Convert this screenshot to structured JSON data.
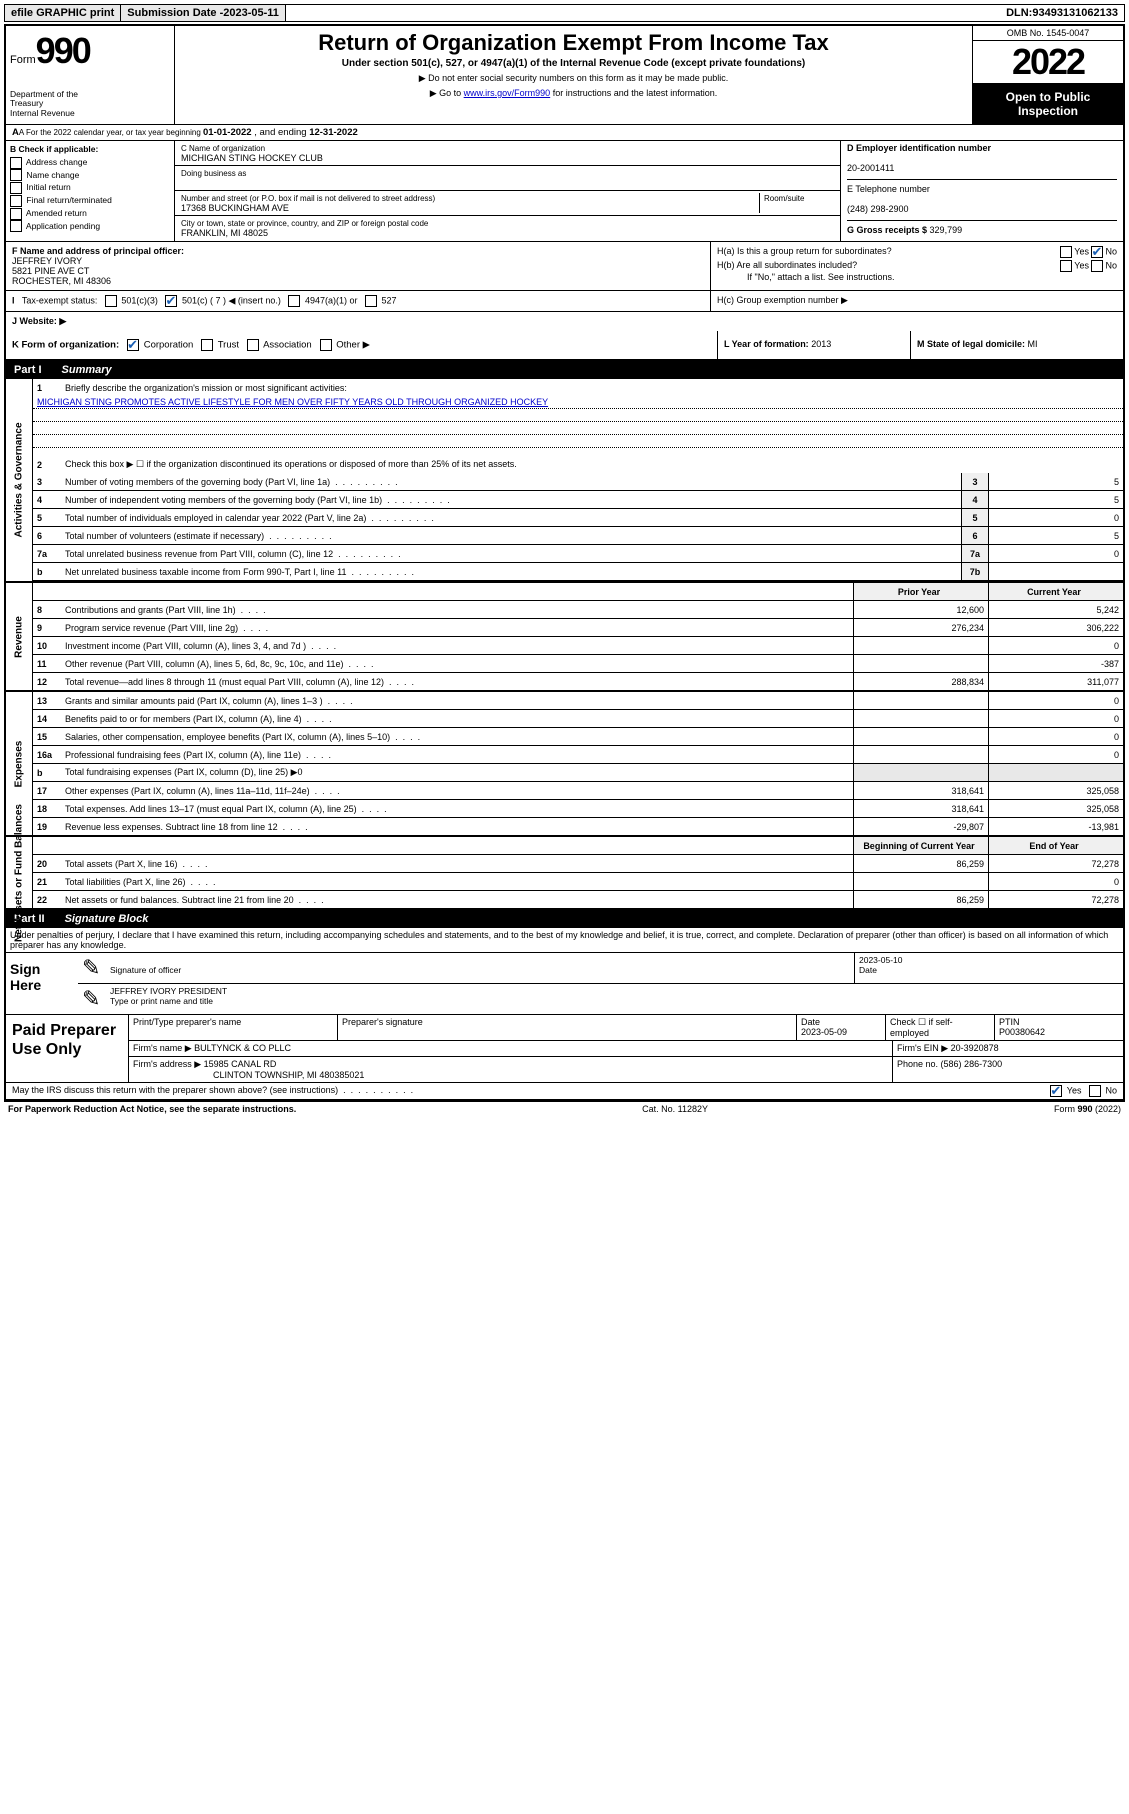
{
  "topbar": {
    "efile": "efile GRAPHIC print",
    "submission_label": "Submission Date - ",
    "submission_date": "2023-05-11",
    "dln_label": "DLN: ",
    "dln": "93493131062133"
  },
  "header": {
    "form_prefix": "Form",
    "form_number": "990",
    "dept": "Department of the Treasury\nInternal Revenue Service",
    "title": "Return of Organization Exempt From Income Tax",
    "subtitle": "Under section 501(c), 527, or 4947(a)(1) of the Internal Revenue Code (except private foundations)",
    "note1": "▶ Do not enter social security numbers on this form as it may be made public.",
    "note2_pre": "▶ Go to ",
    "note2_link": "www.irs.gov/Form990",
    "note2_post": " for instructions and the latest information.",
    "omb": "OMB No. 1545-0047",
    "year": "2022",
    "open": "Open to Public Inspection"
  },
  "rowA": {
    "text_pre": "A For the 2022 calendar year, or tax year beginning ",
    "begin": "01-01-2022",
    "mid": "   , and ending ",
    "end": "12-31-2022"
  },
  "sectionB": {
    "label": "B Check if applicable:",
    "items": [
      "Address change",
      "Name change",
      "Initial return",
      "Final return/terminated",
      "Amended return",
      "Application pending"
    ]
  },
  "sectionC": {
    "name_label": "C Name of organization",
    "name": "MICHIGAN STING HOCKEY CLUB",
    "dba_label": "Doing business as",
    "street_label": "Number and street (or P.O. box if mail is not delivered to street address)",
    "room_label": "Room/suite",
    "street": "17368 BUCKINGHAM AVE",
    "city_label": "City or town, state or province, country, and ZIP or foreign postal code",
    "city": "FRANKLIN, MI  48025"
  },
  "sectionD": {
    "label": "D Employer identification number",
    "value": "20-2001411"
  },
  "sectionE": {
    "label": "E Telephone number",
    "value": "(248) 298-2900"
  },
  "sectionG": {
    "label": "G Gross receipts $ ",
    "value": "329,799"
  },
  "sectionF": {
    "label": "F Name and address of principal officer:",
    "name": "JEFFREY IVORY",
    "addr1": "5821 PINE AVE CT",
    "addr2": "ROCHESTER, MI  48306"
  },
  "sectionH": {
    "ha": "H(a)  Is this a group return for subordinates?",
    "hb": "H(b)  Are all subordinates included?",
    "hb_note": "If \"No,\" attach a list. See instructions.",
    "hc": "H(c)  Group exemption number ▶",
    "yes": "Yes",
    "no": "No"
  },
  "sectionI": {
    "label": "I   Tax-exempt status:",
    "c3": "501(c)(3)",
    "c": "501(c) ( 7 ) ◀ (insert no.)",
    "a1": "4947(a)(1) or",
    "s527": "527"
  },
  "sectionJ": {
    "label": "J   Website: ▶"
  },
  "sectionK": {
    "label": "K Form of organization:",
    "corp": "Corporation",
    "trust": "Trust",
    "assoc": "Association",
    "other": "Other ▶"
  },
  "sectionL": {
    "label": "L Year of formation: ",
    "value": "2013"
  },
  "sectionM": {
    "label": "M State of legal domicile: ",
    "value": "MI"
  },
  "part1": {
    "header": "Part I",
    "title": "Summary",
    "line1_label": "Briefly describe the organization's mission or most significant activities:",
    "line1_text": "MICHIGAN STING PROMOTES ACTIVE LIFESTYLE FOR MEN OVER FIFTY YEARS OLD THROUGH ORGANIZED HOCKEY",
    "line2": "Check this box ▶ ☐  if the organization discontinued its operations or disposed of more than 25% of its net assets.",
    "vlabel_gov": "Activities & Governance",
    "vlabel_rev": "Revenue",
    "vlabel_exp": "Expenses",
    "vlabel_net": "Net Assets or Fund Balances",
    "prior_year": "Prior Year",
    "current_year": "Current Year",
    "begin_year": "Beginning of Current Year",
    "end_year": "End of Year",
    "rows_gov": [
      {
        "n": "3",
        "d": "Number of voting members of the governing body (Part VI, line 1a)",
        "box": "3",
        "v": "5"
      },
      {
        "n": "4",
        "d": "Number of independent voting members of the governing body (Part VI, line 1b)",
        "box": "4",
        "v": "5"
      },
      {
        "n": "5",
        "d": "Total number of individuals employed in calendar year 2022 (Part V, line 2a)",
        "box": "5",
        "v": "0"
      },
      {
        "n": "6",
        "d": "Total number of volunteers (estimate if necessary)",
        "box": "6",
        "v": "5"
      },
      {
        "n": "7a",
        "d": "Total unrelated business revenue from Part VIII, column (C), line 12",
        "box": "7a",
        "v": "0"
      },
      {
        "n": "b",
        "d": "Net unrelated business taxable income from Form 990-T, Part I, line 11",
        "box": "7b",
        "v": ""
      }
    ],
    "rows_rev": [
      {
        "n": "8",
        "d": "Contributions and grants (Part VIII, line 1h)",
        "p": "12,600",
        "c": "5,242"
      },
      {
        "n": "9",
        "d": "Program service revenue (Part VIII, line 2g)",
        "p": "276,234",
        "c": "306,222"
      },
      {
        "n": "10",
        "d": "Investment income (Part VIII, column (A), lines 3, 4, and 7d )",
        "p": "",
        "c": "0"
      },
      {
        "n": "11",
        "d": "Other revenue (Part VIII, column (A), lines 5, 6d, 8c, 9c, 10c, and 11e)",
        "p": "",
        "c": "-387"
      },
      {
        "n": "12",
        "d": "Total revenue—add lines 8 through 11 (must equal Part VIII, column (A), line 12)",
        "p": "288,834",
        "c": "311,077"
      }
    ],
    "rows_exp": [
      {
        "n": "13",
        "d": "Grants and similar amounts paid (Part IX, column (A), lines 1–3 )",
        "p": "",
        "c": "0"
      },
      {
        "n": "14",
        "d": "Benefits paid to or for members (Part IX, column (A), line 4)",
        "p": "",
        "c": "0"
      },
      {
        "n": "15",
        "d": "Salaries, other compensation, employee benefits (Part IX, column (A), lines 5–10)",
        "p": "",
        "c": "0"
      },
      {
        "n": "16a",
        "d": "Professional fundraising fees (Part IX, column (A), line 11e)",
        "p": "",
        "c": "0"
      },
      {
        "n": "b",
        "d": "Total fundraising expenses (Part IX, column (D), line 25) ▶0",
        "p": null,
        "c": null
      },
      {
        "n": "17",
        "d": "Other expenses (Part IX, column (A), lines 11a–11d, 11f–24e)",
        "p": "318,641",
        "c": "325,058"
      },
      {
        "n": "18",
        "d": "Total expenses. Add lines 13–17 (must equal Part IX, column (A), line 25)",
        "p": "318,641",
        "c": "325,058"
      },
      {
        "n": "19",
        "d": "Revenue less expenses. Subtract line 18 from line 12",
        "p": "-29,807",
        "c": "-13,981"
      }
    ],
    "rows_net": [
      {
        "n": "20",
        "d": "Total assets (Part X, line 16)",
        "p": "86,259",
        "c": "72,278"
      },
      {
        "n": "21",
        "d": "Total liabilities (Part X, line 26)",
        "p": "",
        "c": "0"
      },
      {
        "n": "22",
        "d": "Net assets or fund balances. Subtract line 21 from line 20",
        "p": "86,259",
        "c": "72,278"
      }
    ]
  },
  "part2": {
    "header": "Part II",
    "title": "Signature Block",
    "declaration": "Under penalties of perjury, I declare that I have examined this return, including accompanying schedules and statements, and to the best of my knowledge and belief, it is true, correct, and complete. Declaration of preparer (other than officer) is based on all information of which preparer has any knowledge.",
    "sign_here": "Sign Here",
    "sig_officer": "Signature of officer",
    "sig_date": "2023-05-10",
    "date_label": "Date",
    "officer_name": "JEFFREY IVORY  PRESIDENT",
    "officer_label": "Type or print name and title",
    "paid": "Paid Preparer Use Only",
    "col_prep": "Print/Type preparer's name",
    "col_sig": "Preparer's signature",
    "col_date": "Date",
    "prep_date": "2023-05-09",
    "col_check": "Check ☐ if self-employed",
    "col_ptin": "PTIN",
    "ptin": "P00380642",
    "firm_name_label": "Firm's name    ▶ ",
    "firm_name": "BULTYNCK & CO PLLC",
    "firm_ein_label": "Firm's EIN ▶ ",
    "firm_ein": "20-3920878",
    "firm_addr_label": "Firm's address ▶ ",
    "firm_addr1": "15985 CANAL RD",
    "firm_addr2": "CLINTON TOWNSHIP, MI  480385021",
    "phone_label": "Phone no. ",
    "phone": "(586) 286-7300",
    "may_irs": "May the IRS discuss this return with the preparer shown above? (see instructions)",
    "yes": "Yes",
    "no": "No"
  },
  "footer": {
    "left": "For Paperwork Reduction Act Notice, see the separate instructions.",
    "mid": "Cat. No. 11282Y",
    "right": "Form 990 (2022)"
  }
}
